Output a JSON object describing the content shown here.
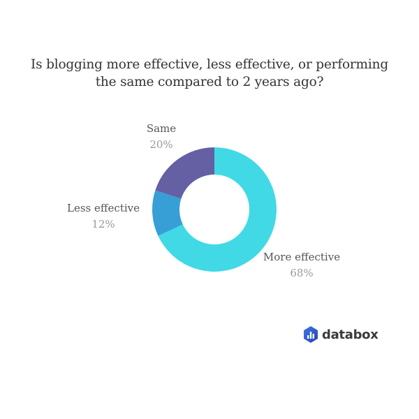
{
  "chart_data": {
    "type": "pie",
    "donut": true,
    "title": "Is blogging more effective, less effective, or performing the same compared to 2 years ago?",
    "categories": [
      "More effective",
      "Less effective",
      "Same"
    ],
    "values": [
      68,
      12,
      20
    ],
    "value_labels": [
      "68%",
      "12%",
      "20%"
    ],
    "colors": [
      "#42d9e6",
      "#379fd6",
      "#6460a3"
    ],
    "legend": "none"
  },
  "title_lines": [
    "Is blogging more effective, less effective, or performing",
    "the same compared to 2 years ago?"
  ],
  "brand": {
    "name": "databox",
    "color": "#2f5bd6"
  }
}
